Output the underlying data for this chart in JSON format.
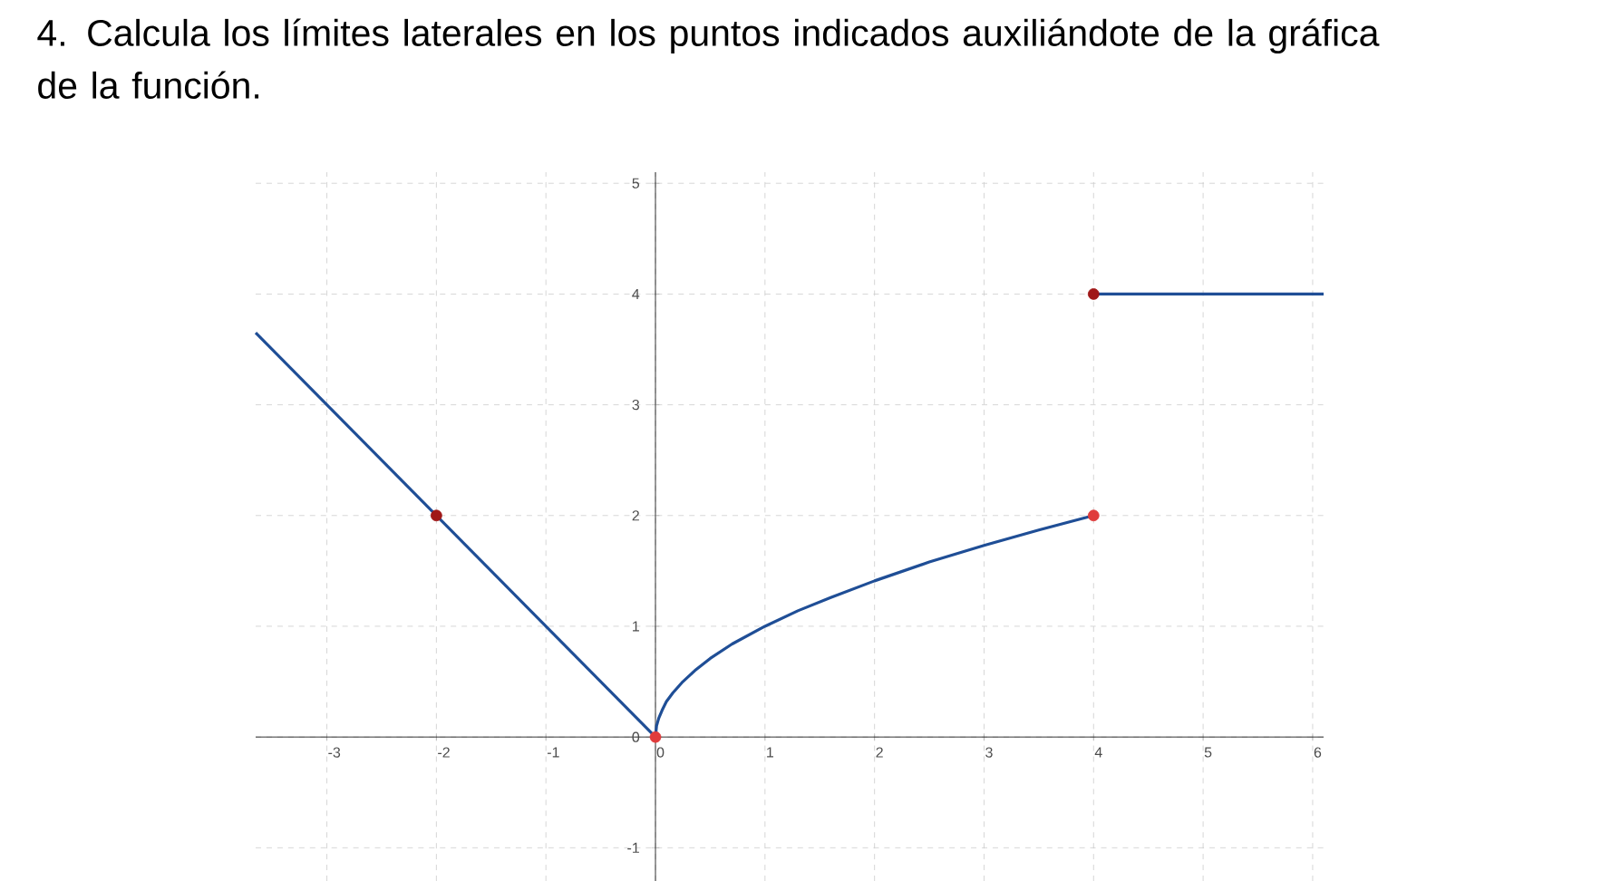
{
  "chart_data": {
    "type": "line",
    "title": "4. Calcula los límites laterales en los puntos indicados auxiliándote de la gráfica de la función.",
    "xlim": [
      -3.65,
      6.1
    ],
    "ylim": [
      -1.3,
      5.1
    ],
    "xticks": [
      -3,
      -2,
      -1,
      0,
      1,
      2,
      3,
      4,
      5,
      6
    ],
    "yticks": [
      -1,
      0,
      1,
      2,
      3,
      4,
      5
    ],
    "grid": true,
    "series": [
      {
        "color": "#1f4e96",
        "x": [
          -3.65,
          0
        ],
        "values": [
          3.65,
          0
        ]
      },
      {
        "color": "#1f4e96",
        "x": [
          0,
          0.01,
          0.03,
          0.06,
          0.1,
          0.16,
          0.25,
          0.36,
          0.5,
          0.7,
          1,
          1.3,
          1.6,
          2,
          2.5,
          3,
          3.5,
          4
        ],
        "values": [
          0,
          0.1,
          0.17,
          0.24,
          0.32,
          0.4,
          0.5,
          0.6,
          0.71,
          0.84,
          1,
          1.14,
          1.26,
          1.41,
          1.58,
          1.73,
          1.87,
          2
        ]
      },
      {
        "color": "#1f4e96",
        "x": [
          4,
          6.1
        ],
        "values": [
          4,
          4
        ]
      },
      {
        "type": "scatter",
        "color": "#a01818",
        "x": [
          -2,
          4
        ],
        "values": [
          2,
          4
        ]
      },
      {
        "type": "scatter",
        "color": "#e03c3c",
        "x": [
          0,
          4
        ],
        "values": [
          0,
          2
        ]
      }
    ]
  }
}
